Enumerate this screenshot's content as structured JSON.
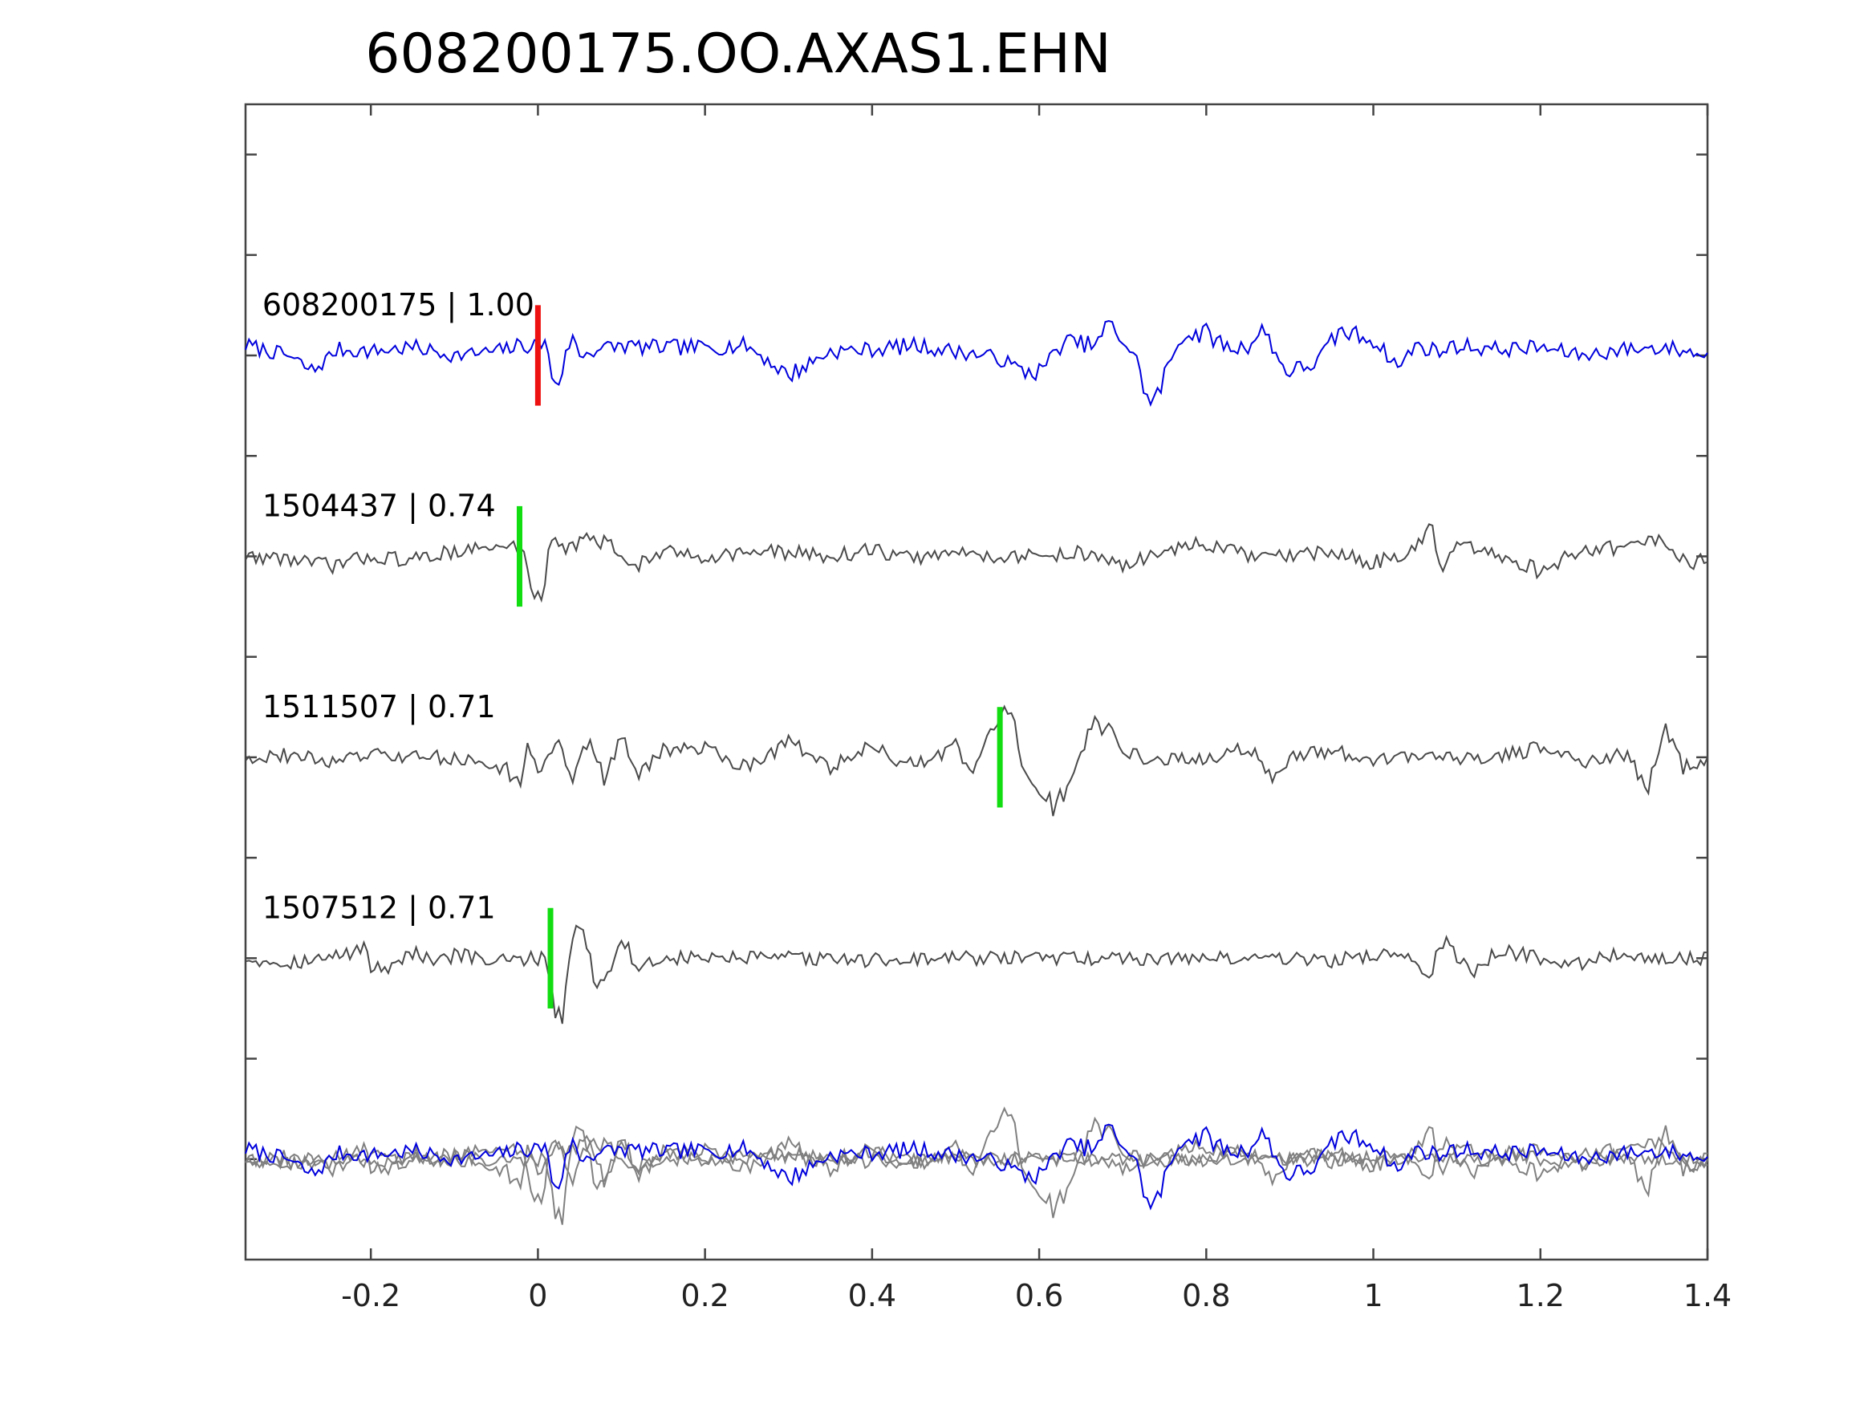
{
  "chart_data": {
    "type": "line",
    "title": "608200175.OO.AXAS1.EHN",
    "xlabel": "",
    "ylabel": "",
    "xlim": [
      -0.35,
      1.4
    ],
    "ylim": [
      -0.5,
      5.25
    ],
    "xticks": [
      -0.2,
      0,
      0.2,
      0.4,
      0.6,
      0.8,
      1,
      1.2,
      1.4
    ],
    "xtick_labels": [
      "-0.2",
      "0",
      "0.2",
      "0.4",
      "0.6",
      "0.8",
      "1",
      "1.2",
      "1.4"
    ],
    "yticks": [
      0,
      0.5,
      1,
      1.5,
      2,
      2.5,
      3,
      3.5,
      4,
      4.5,
      5
    ],
    "grid": false,
    "colors": {
      "template": "#0000dd",
      "match": "#4a4a4a",
      "overlay_match": "#808080",
      "pick_reference": "#ee1111",
      "pick_match": "#11dd11",
      "axes": "#444444"
    },
    "series": [
      {
        "label": "608200175 | 1.00",
        "role": "template",
        "offset": 4,
        "pick_time": 0.0,
        "pick_color": "#ee1111",
        "samples": [
          [
            -0.35,
            0.05
          ],
          [
            -0.3,
            0.0
          ],
          [
            -0.27,
            -0.08
          ],
          [
            -0.24,
            0.03
          ],
          [
            -0.2,
            0.02
          ],
          [
            -0.15,
            0.04
          ],
          [
            -0.1,
            0.0
          ],
          [
            -0.05,
            0.02
          ],
          [
            -0.02,
            0.05
          ],
          [
            0.0,
            0.05
          ],
          [
            0.01,
            0.08
          ],
          [
            0.015,
            -0.1
          ],
          [
            0.025,
            -0.13
          ],
          [
            0.04,
            0.1
          ],
          [
            0.05,
            0.0
          ],
          [
            0.07,
            0.03
          ],
          [
            0.1,
            0.05
          ],
          [
            0.13,
            0.04
          ],
          [
            0.2,
            0.04
          ],
          [
            0.25,
            0.05
          ],
          [
            0.3,
            -0.1
          ],
          [
            0.35,
            0.02
          ],
          [
            0.4,
            0.03
          ],
          [
            0.45,
            0.05
          ],
          [
            0.5,
            0.02
          ],
          [
            0.55,
            -0.01
          ],
          [
            0.58,
            -0.08
          ],
          [
            0.6,
            -0.08
          ],
          [
            0.63,
            0.07
          ],
          [
            0.67,
            0.05
          ],
          [
            0.68,
            0.16
          ],
          [
            0.7,
            0.08
          ],
          [
            0.72,
            -0.05
          ],
          [
            0.73,
            -0.24
          ],
          [
            0.74,
            -0.22
          ],
          [
            0.75,
            -0.1
          ],
          [
            0.77,
            0.1
          ],
          [
            0.8,
            0.11
          ],
          [
            0.83,
            0.03
          ],
          [
            0.85,
            0.05
          ],
          [
            0.87,
            0.13
          ],
          [
            0.89,
            -0.05
          ],
          [
            0.9,
            -0.08
          ],
          [
            0.93,
            -0.04
          ],
          [
            0.96,
            0.12
          ],
          [
            0.98,
            0.1
          ],
          [
            1.0,
            0.08
          ],
          [
            1.03,
            -0.06
          ],
          [
            1.05,
            0.05
          ],
          [
            1.08,
            0.02
          ],
          [
            1.1,
            0.05
          ],
          [
            1.15,
            0.03
          ],
          [
            1.2,
            0.04
          ],
          [
            1.25,
            0.0
          ],
          [
            1.3,
            0.03
          ],
          [
            1.35,
            0.04
          ],
          [
            1.4,
            0.0
          ]
        ]
      },
      {
        "label": "1504437 | 0.74",
        "role": "match",
        "offset": 3,
        "pick_time": -0.022,
        "pick_color": "#11dd11",
        "samples": [
          [
            -0.35,
            0.0
          ],
          [
            -0.3,
            -0.01
          ],
          [
            -0.25,
            -0.05
          ],
          [
            -0.2,
            0.0
          ],
          [
            -0.15,
            -0.02
          ],
          [
            -0.1,
            0.03
          ],
          [
            -0.05,
            0.04
          ],
          [
            -0.03,
            0.05
          ],
          [
            -0.02,
            0.05
          ],
          [
            -0.01,
            -0.1
          ],
          [
            -0.005,
            -0.18
          ],
          [
            0.0,
            -0.22
          ],
          [
            0.005,
            -0.2
          ],
          [
            0.015,
            0.1
          ],
          [
            0.02,
            0.12
          ],
          [
            0.03,
            0.05
          ],
          [
            0.04,
            0.03
          ],
          [
            0.05,
            0.1
          ],
          [
            0.07,
            0.07
          ],
          [
            0.09,
            0.05
          ],
          [
            0.11,
            -0.05
          ],
          [
            0.13,
            -0.02
          ],
          [
            0.15,
            0.02
          ],
          [
            0.2,
            0.0
          ],
          [
            0.25,
            0.02
          ],
          [
            0.3,
            0.02
          ],
          [
            0.35,
            0.0
          ],
          [
            0.4,
            0.03
          ],
          [
            0.45,
            -0.01
          ],
          [
            0.5,
            0.02
          ],
          [
            0.55,
            0.0
          ],
          [
            0.6,
            0.0
          ],
          [
            0.65,
            0.02
          ],
          [
            0.7,
            -0.05
          ],
          [
            0.75,
            0.03
          ],
          [
            0.8,
            0.06
          ],
          [
            0.85,
            0.0
          ],
          [
            0.9,
            0.0
          ],
          [
            0.95,
            0.02
          ],
          [
            1.0,
            -0.03
          ],
          [
            1.05,
            0.03
          ],
          [
            1.07,
            0.14
          ],
          [
            1.08,
            -0.08
          ],
          [
            1.1,
            0.05
          ],
          [
            1.15,
            0.0
          ],
          [
            1.2,
            -0.07
          ],
          [
            1.25,
            0.03
          ],
          [
            1.3,
            0.05
          ],
          [
            1.35,
            0.08
          ],
          [
            1.38,
            -0.05
          ],
          [
            1.4,
            0.0
          ]
        ]
      },
      {
        "label": "1511507 | 0.71",
        "role": "match",
        "offset": 2,
        "pick_time": 0.553,
        "pick_color": "#11dd11",
        "samples": [
          [
            -0.35,
            0.0
          ],
          [
            -0.3,
            0.01
          ],
          [
            -0.25,
            -0.02
          ],
          [
            -0.2,
            0.01
          ],
          [
            -0.15,
            0.0
          ],
          [
            -0.1,
            0.0
          ],
          [
            -0.05,
            -0.05
          ],
          [
            -0.02,
            -0.1
          ],
          [
            -0.01,
            0.08
          ],
          [
            0.0,
            -0.12
          ],
          [
            0.02,
            0.1
          ],
          [
            0.04,
            -0.1
          ],
          [
            0.06,
            0.1
          ],
          [
            0.08,
            -0.12
          ],
          [
            0.1,
            0.1
          ],
          [
            0.12,
            -0.08
          ],
          [
            0.15,
            0.03
          ],
          [
            0.2,
            0.05
          ],
          [
            0.25,
            -0.05
          ],
          [
            0.3,
            0.08
          ],
          [
            0.35,
            -0.05
          ],
          [
            0.4,
            0.05
          ],
          [
            0.45,
            -0.05
          ],
          [
            0.5,
            0.05
          ],
          [
            0.52,
            -0.1
          ],
          [
            0.54,
            0.12
          ],
          [
            0.56,
            0.2
          ],
          [
            0.57,
            0.15
          ],
          [
            0.58,
            -0.05
          ],
          [
            0.6,
            -0.15
          ],
          [
            0.61,
            -0.25
          ],
          [
            0.62,
            -0.23
          ],
          [
            0.64,
            -0.1
          ],
          [
            0.66,
            0.15
          ],
          [
            0.68,
            0.14
          ],
          [
            0.7,
            0.05
          ],
          [
            0.72,
            0.0
          ],
          [
            0.75,
            -0.01
          ],
          [
            0.8,
            -0.01
          ],
          [
            0.85,
            0.05
          ],
          [
            0.88,
            -0.1
          ],
          [
            0.9,
            0.0
          ],
          [
            0.95,
            0.03
          ],
          [
            1.0,
            -0.02
          ],
          [
            1.05,
            0.02
          ],
          [
            1.1,
            0.0
          ],
          [
            1.15,
            0.0
          ],
          [
            1.2,
            0.05
          ],
          [
            1.25,
            -0.02
          ],
          [
            1.3,
            0.02
          ],
          [
            1.33,
            -0.15
          ],
          [
            1.35,
            0.15
          ],
          [
            1.37,
            -0.05
          ],
          [
            1.4,
            0.0
          ]
        ]
      },
      {
        "label": "1507512 | 0.71",
        "role": "match",
        "offset": 1,
        "pick_time": 0.015,
        "pick_color": "#11dd11",
        "samples": [
          [
            -0.35,
            0.0
          ],
          [
            -0.3,
            -0.02
          ],
          [
            -0.25,
            0.0
          ],
          [
            -0.22,
            0.03
          ],
          [
            -0.21,
            0.08
          ],
          [
            -0.2,
            -0.05
          ],
          [
            -0.18,
            -0.04
          ],
          [
            -0.15,
            0.03
          ],
          [
            -0.12,
            -0.03
          ],
          [
            -0.1,
            0.02
          ],
          [
            -0.05,
            -0.02
          ],
          [
            0.0,
            0.0
          ],
          [
            0.01,
            0.03
          ],
          [
            0.015,
            -0.15
          ],
          [
            0.02,
            -0.25
          ],
          [
            0.03,
            -0.3
          ],
          [
            0.04,
            0.12
          ],
          [
            0.05,
            0.15
          ],
          [
            0.06,
            0.05
          ],
          [
            0.07,
            -0.15
          ],
          [
            0.08,
            -0.1
          ],
          [
            0.1,
            0.1
          ],
          [
            0.12,
            -0.05
          ],
          [
            0.15,
            0.0
          ],
          [
            0.2,
            0.0
          ],
          [
            0.3,
            0.0
          ],
          [
            0.4,
            -0.01
          ],
          [
            0.5,
            0.0
          ],
          [
            0.6,
            0.0
          ],
          [
            0.7,
            0.0
          ],
          [
            0.8,
            0.0
          ],
          [
            0.9,
            0.0
          ],
          [
            0.95,
            -0.01
          ],
          [
            1.0,
            0.01
          ],
          [
            1.03,
            0.03
          ],
          [
            1.05,
            0.0
          ],
          [
            1.07,
            -0.1
          ],
          [
            1.08,
            0.1
          ],
          [
            1.1,
            0.0
          ],
          [
            1.12,
            -0.08
          ],
          [
            1.15,
            0.05
          ],
          [
            1.2,
            0.0
          ],
          [
            1.25,
            -0.02
          ],
          [
            1.3,
            0.02
          ],
          [
            1.35,
            0.0
          ],
          [
            1.4,
            0.0
          ]
        ]
      }
    ],
    "overlay": {
      "role": "stack",
      "offset": 0,
      "description_series": [
        "608200175 | 1.00",
        "1504437 | 0.74",
        "1511507 | 0.71",
        "1507512 | 0.71"
      ]
    }
  }
}
